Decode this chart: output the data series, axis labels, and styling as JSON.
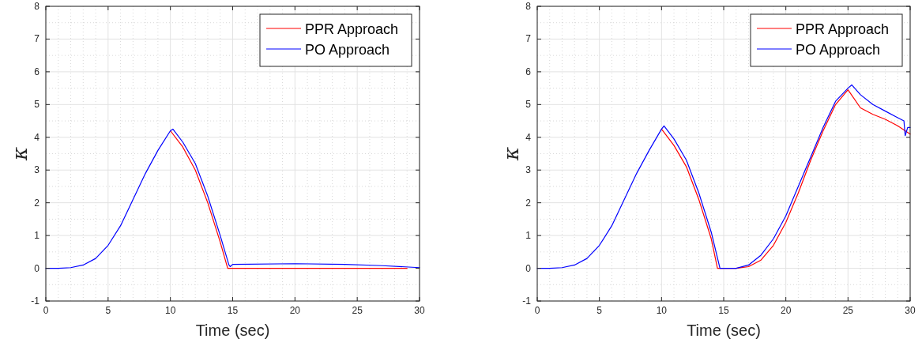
{
  "chart_data": [
    {
      "type": "line",
      "xlabel": "Time (sec)",
      "ylabel": "κ",
      "xlim": [
        0,
        30
      ],
      "ylim": [
        -1,
        8
      ],
      "xticks": [
        0,
        5,
        10,
        15,
        20,
        25,
        30
      ],
      "yticks": [
        -1,
        0,
        1,
        2,
        3,
        4,
        5,
        6,
        7,
        8
      ],
      "grid": true,
      "legend": "top right",
      "series": [
        {
          "name": "PPR Approach",
          "color": "#ff0000",
          "x": [
            10,
            11,
            12,
            13,
            14,
            14.6,
            15,
            20,
            25,
            29
          ],
          "values": [
            4.2,
            3.7,
            3,
            2,
            0.8,
            0,
            0,
            0,
            0,
            0
          ]
        },
        {
          "name": "PO Approach",
          "color": "#0000ff",
          "x": [
            0,
            1,
            2,
            3,
            4,
            5,
            6,
            7,
            8,
            9,
            10,
            10.2,
            11,
            12,
            13,
            14,
            14.7,
            14.8,
            15,
            20,
            24,
            27,
            30
          ],
          "values": [
            0,
            0,
            0.02,
            0.1,
            0.3,
            0.7,
            1.3,
            2.1,
            2.9,
            3.6,
            4.2,
            4.25,
            3.85,
            3.2,
            2.2,
            1,
            0.1,
            0.05,
            0.12,
            0.14,
            0.12,
            0.08,
            0.02
          ]
        }
      ]
    },
    {
      "type": "line",
      "xlabel": "Time (sec)",
      "ylabel": "κ",
      "xlim": [
        0,
        30
      ],
      "ylim": [
        -1,
        8
      ],
      "xticks": [
        0,
        5,
        10,
        15,
        20,
        25,
        30
      ],
      "yticks": [
        -1,
        0,
        1,
        2,
        3,
        4,
        5,
        6,
        7,
        8
      ],
      "grid": true,
      "legend": "top right",
      "series": [
        {
          "name": "PPR Approach",
          "color": "#ff0000",
          "x": [
            10,
            11,
            12,
            13,
            14,
            14.5,
            16,
            17,
            18,
            19,
            20,
            21,
            22,
            23,
            24,
            25,
            26,
            27,
            28,
            29,
            30
          ],
          "values": [
            4.25,
            3.75,
            3.1,
            2.1,
            0.9,
            0,
            0,
            0.05,
            0.25,
            0.7,
            1.4,
            2.3,
            3.3,
            4.2,
            5,
            5.45,
            4.9,
            4.7,
            4.55,
            4.35,
            4.1
          ]
        },
        {
          "name": "PO Approach",
          "color": "#0000ff",
          "x": [
            0,
            1,
            2,
            3,
            4,
            5,
            6,
            7,
            8,
            9,
            10,
            10.2,
            11,
            12,
            13,
            14,
            14.7,
            16,
            17,
            18,
            19,
            20,
            21,
            22,
            23,
            24,
            25,
            25.3,
            26,
            27,
            28,
            29,
            29.5,
            29.6,
            29.8,
            30
          ],
          "values": [
            0,
            0,
            0.02,
            0.1,
            0.3,
            0.7,
            1.3,
            2.1,
            2.9,
            3.6,
            4.25,
            4.35,
            3.95,
            3.3,
            2.3,
            1.1,
            0,
            0,
            0.1,
            0.4,
            0.9,
            1.6,
            2.5,
            3.4,
            4.3,
            5.1,
            5.5,
            5.6,
            5.3,
            5,
            4.8,
            4.6,
            4.5,
            4.05,
            4.3,
            4.3
          ]
        }
      ]
    }
  ]
}
